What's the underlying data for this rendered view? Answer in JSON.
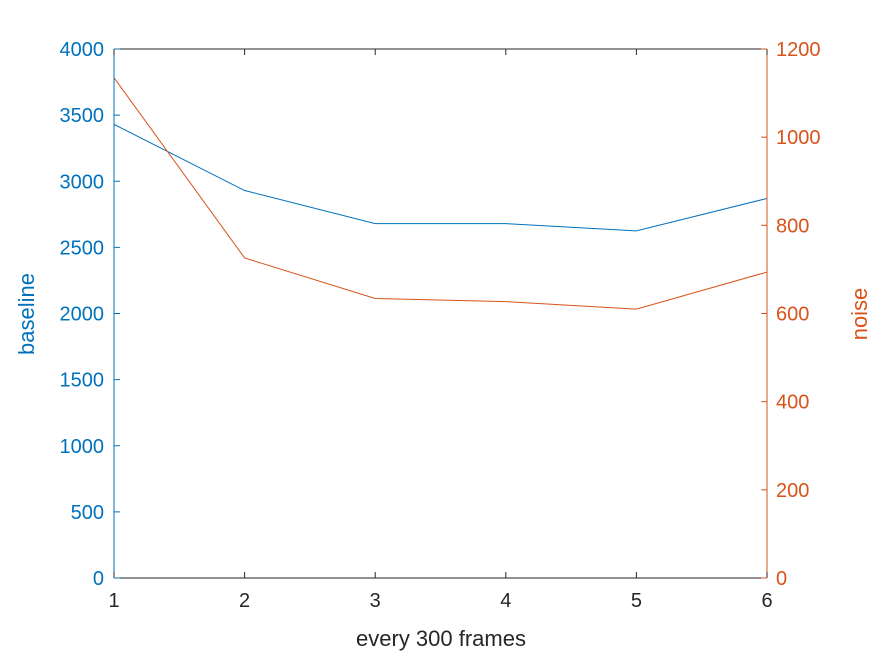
{
  "chart_data": {
    "type": "line",
    "title": "",
    "xlabel": "every 300 frames",
    "x": [
      1,
      2,
      3,
      4,
      5,
      6
    ],
    "xlim": [
      1,
      6
    ],
    "xticks": [
      "1",
      "2",
      "3",
      "4",
      "5",
      "6"
    ],
    "grid": false,
    "legend": "none",
    "left_axis": {
      "label": "baseline",
      "color": "#0072BD",
      "ylim": [
        0,
        4000
      ],
      "ticks": [
        "0",
        "500",
        "1000",
        "1500",
        "2000",
        "2500",
        "3000",
        "3500",
        "4000"
      ]
    },
    "right_axis": {
      "label": "noise",
      "color": "#D95319",
      "ylim": [
        0,
        1200
      ],
      "ticks": [
        "0",
        "200",
        "400",
        "600",
        "800",
        "1000",
        "1200"
      ]
    },
    "series": [
      {
        "axis": "left",
        "color": "#0072BD",
        "values": [
          3430,
          2930,
          2680,
          2680,
          2625,
          2870
        ]
      },
      {
        "axis": "right",
        "color": "#D95319",
        "values": [
          1135,
          726,
          634,
          627,
          610,
          694
        ]
      }
    ]
  }
}
